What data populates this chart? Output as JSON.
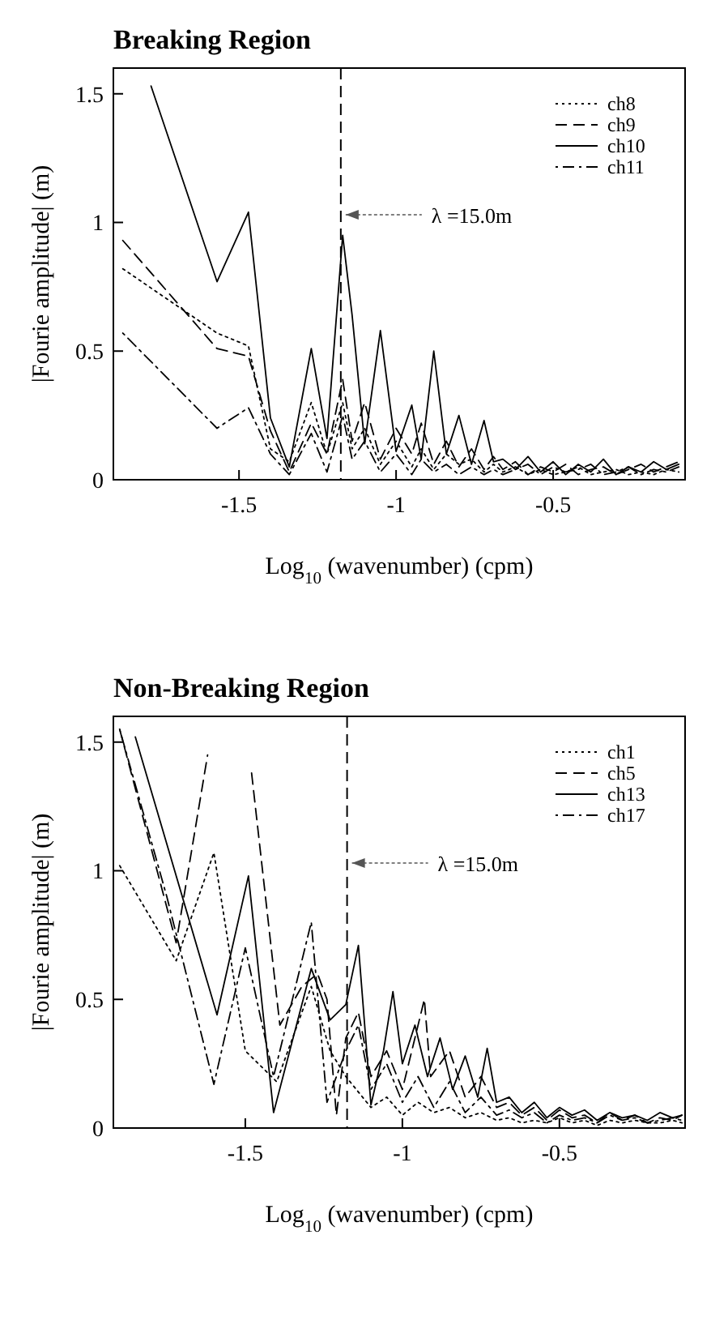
{
  "chart_data": [
    {
      "type": "line",
      "title": "Breaking Region",
      "xlabel": "Log$_{10}$  (wavenumber)   (cpm)",
      "ylabel": "|Fourie amplitude| (m)",
      "xlim": [
        -1.9,
        -0.08
      ],
      "ylim": [
        0,
        1.6
      ],
      "xticks": [
        -1.5,
        -1,
        -0.5
      ],
      "yticks": [
        0,
        0.5,
        1,
        1.5
      ],
      "legend": "top right",
      "ref_lines": [
        {
          "axis": "x",
          "value": -1.176,
          "line_style": "dashed"
        }
      ],
      "annotations": [
        {
          "text": "λ =15.0m",
          "x": -1.176,
          "y": 1.03
        }
      ],
      "series": [
        {
          "name": "ch8",
          "color": "#000000",
          "line_style": "dotted",
          "x": [
            -1.87,
            -1.57,
            -1.47,
            -1.4,
            -1.34,
            -1.27,
            -1.22,
            -1.17,
            -1.14,
            -1.1,
            -1.05,
            -1.0,
            -0.95,
            -0.92,
            -0.88,
            -0.84,
            -0.8,
            -0.76,
            -0.72,
            -0.69,
            -0.66,
            -0.62,
            -0.58,
            -0.54,
            -0.5,
            -0.46,
            -0.42,
            -0.38,
            -0.34,
            -0.3,
            -0.26,
            -0.22,
            -0.18,
            -0.14,
            -0.1
          ],
          "values": [
            0.82,
            0.57,
            0.52,
            0.12,
            0.07,
            0.3,
            0.1,
            0.3,
            0.12,
            0.2,
            0.06,
            0.15,
            0.05,
            0.12,
            0.04,
            0.1,
            0.06,
            0.08,
            0.03,
            0.06,
            0.03,
            0.05,
            0.02,
            0.04,
            0.02,
            0.03,
            0.05,
            0.02,
            0.03,
            0.04,
            0.02,
            0.03,
            0.02,
            0.04,
            0.03
          ]
        },
        {
          "name": "ch9",
          "color": "#000000",
          "line_style": "dashed",
          "x": [
            -1.87,
            -1.57,
            -1.47,
            -1.4,
            -1.34,
            -1.27,
            -1.22,
            -1.17,
            -1.14,
            -1.1,
            -1.05,
            -1.0,
            -0.95,
            -0.92,
            -0.88,
            -0.84,
            -0.8,
            -0.76,
            -0.72,
            -0.69,
            -0.66,
            -0.62,
            -0.58,
            -0.54,
            -0.5,
            -0.46,
            -0.42,
            -0.38,
            -0.34,
            -0.3,
            -0.26,
            -0.22,
            -0.18,
            -0.14,
            -0.1
          ],
          "values": [
            0.93,
            0.51,
            0.48,
            0.19,
            0.03,
            0.22,
            0.1,
            0.39,
            0.15,
            0.3,
            0.08,
            0.2,
            0.1,
            0.22,
            0.06,
            0.15,
            0.05,
            0.12,
            0.04,
            0.09,
            0.04,
            0.07,
            0.02,
            0.05,
            0.03,
            0.06,
            0.02,
            0.04,
            0.05,
            0.02,
            0.04,
            0.06,
            0.03,
            0.05,
            0.07
          ]
        },
        {
          "name": "ch10",
          "color": "#000000",
          "line_style": "solid",
          "x": [
            -1.78,
            -1.57,
            -1.47,
            -1.4,
            -1.34,
            -1.27,
            -1.22,
            -1.17,
            -1.14,
            -1.1,
            -1.05,
            -1.0,
            -0.95,
            -0.92,
            -0.88,
            -0.84,
            -0.8,
            -0.76,
            -0.72,
            -0.69,
            -0.66,
            -0.62,
            -0.58,
            -0.54,
            -0.5,
            -0.46,
            -0.42,
            -0.38,
            -0.34,
            -0.3,
            -0.26,
            -0.22,
            -0.18,
            -0.14,
            -0.1
          ],
          "values": [
            1.53,
            0.77,
            1.04,
            0.24,
            0.05,
            0.51,
            0.16,
            0.95,
            0.64,
            0.14,
            0.58,
            0.11,
            0.29,
            0.08,
            0.5,
            0.1,
            0.25,
            0.06,
            0.23,
            0.07,
            0.08,
            0.04,
            0.09,
            0.03,
            0.07,
            0.02,
            0.06,
            0.03,
            0.08,
            0.02,
            0.05,
            0.03,
            0.07,
            0.04,
            0.06
          ]
        },
        {
          "name": "ch11",
          "color": "#000000",
          "line_style": "dashdot",
          "x": [
            -1.87,
            -1.57,
            -1.47,
            -1.4,
            -1.34,
            -1.27,
            -1.22,
            -1.17,
            -1.14,
            -1.1,
            -1.05,
            -1.0,
            -0.95,
            -0.92,
            -0.88,
            -0.84,
            -0.8,
            -0.76,
            -0.72,
            -0.69,
            -0.66,
            -0.62,
            -0.58,
            -0.54,
            -0.5,
            -0.46,
            -0.42,
            -0.38,
            -0.34,
            -0.3,
            -0.26,
            -0.22,
            -0.18,
            -0.14,
            -0.1
          ],
          "values": [
            0.57,
            0.2,
            0.28,
            0.1,
            0.02,
            0.18,
            0.03,
            0.25,
            0.08,
            0.15,
            0.03,
            0.1,
            0.02,
            0.08,
            0.03,
            0.06,
            0.02,
            0.05,
            0.02,
            0.04,
            0.02,
            0.04,
            0.06,
            0.02,
            0.05,
            0.03,
            0.04,
            0.06,
            0.02,
            0.03,
            0.05,
            0.02,
            0.04,
            0.03,
            0.05
          ]
        }
      ]
    },
    {
      "type": "line",
      "title": "Non-Breaking Region",
      "xlabel": "Log$_{10}$ (wavenumber)   (cpm)",
      "ylabel": "|Fourie amplitude| (m)",
      "xlim": [
        -1.92,
        -0.1
      ],
      "ylim": [
        0,
        1.6
      ],
      "xticks": [
        -1.5,
        -1,
        -0.5
      ],
      "yticks": [
        0,
        0.5,
        1,
        1.5
      ],
      "legend": "top right",
      "ref_lines": [
        {
          "axis": "x",
          "value": -1.176,
          "line_style": "dashed"
        }
      ],
      "annotations": [
        {
          "text": "λ =15.0m",
          "x": -1.176,
          "y": 1.03
        }
      ],
      "series": [
        {
          "name": "ch1",
          "color": "#000000",
          "line_style": "dotted",
          "x": [
            -1.9,
            -1.72,
            -1.6,
            -1.5,
            -1.4,
            -1.29,
            -1.23,
            -1.18,
            -1.1,
            -1.05,
            -1.0,
            -0.95,
            -0.9,
            -0.85,
            -0.8,
            -0.75,
            -0.7,
            -0.66,
            -0.62,
            -0.58,
            -0.54,
            -0.5,
            -0.46,
            -0.42,
            -0.38,
            -0.34,
            -0.3,
            -0.26,
            -0.22,
            -0.18,
            -0.14,
            -0.11
          ],
          "values": [
            1.02,
            0.65,
            1.07,
            0.3,
            0.18,
            0.55,
            0.3,
            0.2,
            0.08,
            0.12,
            0.05,
            0.1,
            0.06,
            0.08,
            0.04,
            0.06,
            0.03,
            0.04,
            0.02,
            0.03,
            0.02,
            0.04,
            0.02,
            0.03,
            0.01,
            0.03,
            0.02,
            0.03,
            0.02,
            0.02,
            0.03,
            0.02
          ]
        },
        {
          "name": "ch5",
          "color": "#000000",
          "line_style": "dashed",
          "x": [
            -1.9,
            -1.72,
            -1.62,
            -1.55,
            -1.48,
            -1.39,
            -1.32,
            -1.27,
            -1.24,
            -1.21,
            -1.18,
            -1.14,
            -1.1,
            -1.05,
            -1.0,
            -0.93,
            -0.91,
            -0.85,
            -0.8,
            -0.75,
            -0.7,
            -0.66,
            -0.62,
            -0.58,
            -0.54,
            -0.5,
            -0.46,
            -0.42,
            -0.38,
            -0.34,
            -0.3,
            -0.26,
            -0.22,
            -0.18,
            -0.14,
            -0.11
          ],
          "values": [
            1.55,
            0.72,
            1.45,
            null,
            1.38,
            0.4,
            0.55,
            0.6,
            0.5,
            0.05,
            0.35,
            0.45,
            0.2,
            0.3,
            0.15,
            0.5,
            0.2,
            0.3,
            0.12,
            0.2,
            0.08,
            0.1,
            0.05,
            0.08,
            0.03,
            0.07,
            0.04,
            0.05,
            0.02,
            0.06,
            0.03,
            0.05,
            0.02,
            0.04,
            0.03,
            0.05
          ]
        },
        {
          "name": "ch13",
          "color": "#000000",
          "line_style": "solid",
          "x": [
            -1.85,
            -1.59,
            -1.49,
            -1.41,
            -1.29,
            -1.23,
            -1.18,
            -1.14,
            -1.1,
            -1.06,
            -1.03,
            -1.0,
            -0.96,
            -0.92,
            -0.88,
            -0.84,
            -0.8,
            -0.76,
            -0.73,
            -0.7,
            -0.66,
            -0.62,
            -0.58,
            -0.54,
            -0.5,
            -0.46,
            -0.42,
            -0.38,
            -0.34,
            -0.3,
            -0.26,
            -0.22,
            -0.18,
            -0.14,
            -0.11
          ],
          "values": [
            1.52,
            0.44,
            0.98,
            0.06,
            0.62,
            0.42,
            0.48,
            0.71,
            0.09,
            0.3,
            0.53,
            0.25,
            0.4,
            0.2,
            0.35,
            0.15,
            0.28,
            0.12,
            0.31,
            0.1,
            0.12,
            0.06,
            0.1,
            0.04,
            0.08,
            0.05,
            0.07,
            0.03,
            0.06,
            0.04,
            0.05,
            0.03,
            0.06,
            0.04,
            0.05
          ]
        },
        {
          "name": "ch17",
          "color": "#000000",
          "line_style": "dashdot",
          "x": [
            -1.9,
            -1.75,
            -1.6,
            -1.5,
            -1.41,
            -1.29,
            -1.24,
            -1.18,
            -1.14,
            -1.1,
            -1.05,
            -1.0,
            -0.95,
            -0.9,
            -0.85,
            -0.8,
            -0.75,
            -0.7,
            -0.66,
            -0.62,
            -0.58,
            -0.54,
            -0.5,
            -0.46,
            -0.42,
            -0.38,
            -0.34,
            -0.3,
            -0.26,
            -0.22,
            -0.18,
            -0.14,
            -0.11
          ],
          "values": [
            1.55,
            0.9,
            0.17,
            0.7,
            0.2,
            0.8,
            0.1,
            0.3,
            0.4,
            0.15,
            0.25,
            0.1,
            0.2,
            0.08,
            0.18,
            0.06,
            0.12,
            0.05,
            0.07,
            0.04,
            0.06,
            0.02,
            0.05,
            0.03,
            0.04,
            0.02,
            0.05,
            0.03,
            0.04,
            0.02,
            0.03,
            0.04,
            0.03
          ]
        }
      ]
    }
  ]
}
